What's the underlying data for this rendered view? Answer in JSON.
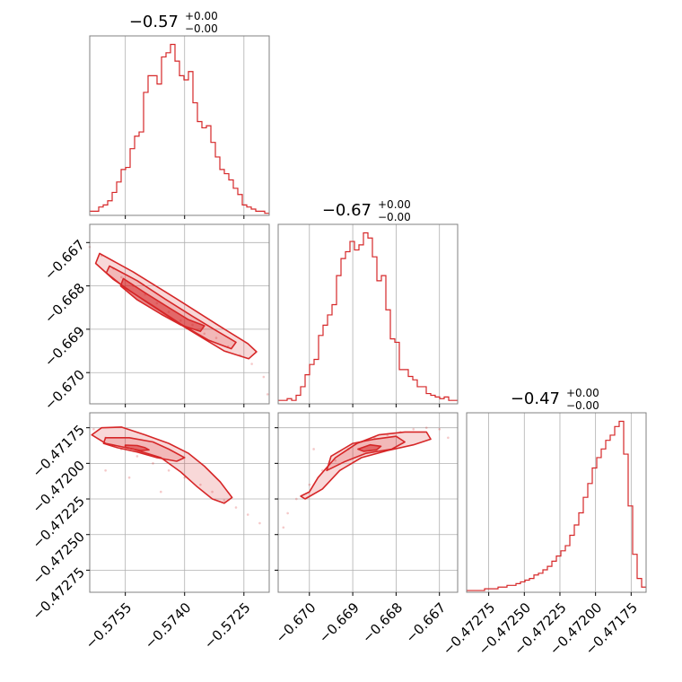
{
  "colors": {
    "accent": "#d62728",
    "grid": "#b0b0b0",
    "frame": "#808080"
  },
  "chart_data": {
    "type": "corner-plot",
    "parameters": [
      {
        "title": {
          "main": "−0.57",
          "sup": "+0.00",
          "sub": "−0.00"
        },
        "range": [
          -0.5764,
          -0.57186
        ],
        "ticks": [
          -0.5755,
          -0.574,
          -0.5725
        ],
        "tick_labels": [
          "−0.5755",
          "−0.5740",
          "−0.5725"
        ],
        "hist_counts": [
          2,
          2,
          4,
          5,
          7,
          11,
          16,
          22,
          23,
          32,
          38,
          40,
          59,
          67,
          67,
          63,
          76,
          78,
          82,
          74,
          67,
          65,
          69,
          54,
          45,
          42,
          43,
          35,
          28,
          22,
          20,
          17,
          13,
          10,
          5,
          4,
          3,
          2,
          2,
          1
        ]
      },
      {
        "title": {
          "main": "−0.67",
          "sup": "+0.00",
          "sub": "−0.00"
        },
        "range": [
          -0.67072,
          -0.66658
        ],
        "ticks": [
          -0.67,
          -0.669,
          -0.668,
          -0.667
        ],
        "tick_labels": [
          "−0.670",
          "−0.669",
          "−0.668",
          "−0.667"
        ],
        "hist_counts": [
          2,
          2,
          3,
          2,
          5,
          10,
          17,
          23,
          26,
          40,
          46,
          52,
          58,
          75,
          85,
          89,
          95,
          90,
          93,
          100,
          97,
          86,
          72,
          75,
          55,
          38,
          36,
          20,
          20,
          16,
          14,
          10,
          10,
          6,
          5,
          4,
          3,
          4,
          2,
          2
        ]
      },
      {
        "title": {
          "main": "−0.47",
          "sup": "+0.00",
          "sub": "−0.00"
        },
        "range": [
          -0.472905,
          -0.471645
        ],
        "ticks": [
          -0.47275,
          -0.4725,
          -0.47225,
          -0.472,
          -0.47175
        ],
        "tick_labels": [
          "−0.47275",
          "−0.47250",
          "−0.47225",
          "−0.47200",
          "−0.47175"
        ],
        "hist_counts": [
          1,
          1,
          1,
          1,
          2,
          2,
          2,
          3,
          3,
          4,
          4,
          5,
          6,
          7,
          8,
          10,
          11,
          13,
          15,
          18,
          21,
          24,
          27,
          33,
          39,
          46,
          55,
          63,
          72,
          78,
          83,
          88,
          91,
          96,
          99,
          80,
          50,
          22,
          8,
          3
        ]
      }
    ],
    "pairs": [
      {
        "x_param": 0,
        "y_param": 1,
        "contours": [
          {
            "level": 1,
            "points": [
              [
                -0.57555,
                -0.66783
              ],
              [
                -0.575,
                -0.66816
              ],
              [
                -0.5744,
                -0.6685
              ],
              [
                -0.5739,
                -0.66878
              ],
              [
                -0.5735,
                -0.66892
              ],
              [
                -0.5736,
                -0.66905
              ],
              [
                -0.5741,
                -0.6689
              ],
              [
                -0.5746,
                -0.66865
              ],
              [
                -0.5752,
                -0.66832
              ],
              [
                -0.57562,
                -0.668
              ]
            ]
          },
          {
            "level": 2,
            "points": [
              [
                -0.5759,
                -0.66754
              ],
              [
                -0.5752,
                -0.66788
              ],
              [
                -0.5745,
                -0.6683
              ],
              [
                -0.5738,
                -0.6687
              ],
              [
                -0.5732,
                -0.66903
              ],
              [
                -0.5727,
                -0.6693
              ],
              [
                -0.57282,
                -0.66945
              ],
              [
                -0.5734,
                -0.66925
              ],
              [
                -0.5741,
                -0.66888
              ],
              [
                -0.5748,
                -0.66846
              ],
              [
                -0.5755,
                -0.66805
              ],
              [
                -0.57598,
                -0.6677
              ]
            ]
          },
          {
            "level": 3,
            "points": [
              [
                -0.57615,
                -0.66725
              ],
              [
                -0.5753,
                -0.66768
              ],
              [
                -0.5742,
                -0.6683
              ],
              [
                -0.5732,
                -0.66888
              ],
              [
                -0.5724,
                -0.66933
              ],
              [
                -0.57218,
                -0.66952
              ],
              [
                -0.57238,
                -0.66968
              ],
              [
                -0.573,
                -0.6695
              ],
              [
                -0.574,
                -0.66895
              ],
              [
                -0.575,
                -0.66835
              ],
              [
                -0.5758,
                -0.66785
              ],
              [
                -0.57625,
                -0.66748
              ]
            ]
          }
        ],
        "samples": [
          [
            -0.5764,
            -0.6671
          ],
          [
            -0.5761,
            -0.6673
          ],
          [
            -0.5758,
            -0.6676
          ],
          [
            -0.5756,
            -0.6678
          ],
          [
            -0.5753,
            -0.668
          ],
          [
            -0.575,
            -0.6682
          ],
          [
            -0.5747,
            -0.6684
          ],
          [
            -0.5744,
            -0.6686
          ],
          [
            -0.5741,
            -0.6688
          ],
          [
            -0.5738,
            -0.6689
          ],
          [
            -0.5735,
            -0.6691
          ],
          [
            -0.5732,
            -0.6692
          ],
          [
            -0.5729,
            -0.6694
          ],
          [
            -0.5726,
            -0.6696
          ],
          [
            -0.5723,
            -0.6698
          ],
          [
            -0.572,
            -0.6701
          ],
          [
            -0.5719,
            -0.6705
          ]
        ]
      },
      {
        "x_param": 0,
        "y_param": 2,
        "contours": [
          {
            "level": 1,
            "points": [
              [
                -0.5755,
                -0.471872
              ],
              [
                -0.5752,
                -0.471875
              ],
              [
                -0.575,
                -0.47189
              ],
              [
                -0.5749,
                -0.471905
              ],
              [
                -0.5751,
                -0.47191
              ],
              [
                -0.5753,
                -0.4719
              ],
              [
                -0.5755,
                -0.471888
              ]
            ]
          },
          {
            "level": 2,
            "points": [
              [
                -0.576,
                -0.47182
              ],
              [
                -0.5754,
                -0.47182
              ],
              [
                -0.5748,
                -0.47185
              ],
              [
                -0.5744,
                -0.4719
              ],
              [
                -0.574,
                -0.47196
              ],
              [
                -0.5742,
                -0.471985
              ],
              [
                -0.5747,
                -0.47196
              ],
              [
                -0.5752,
                -0.47192
              ],
              [
                -0.5757,
                -0.47189
              ],
              [
                -0.57605,
                -0.47186
              ]
            ]
          },
          {
            "level": 3,
            "points": [
              [
                -0.5761,
                -0.47175
              ],
              [
                -0.5756,
                -0.471745
              ],
              [
                -0.575,
                -0.4718
              ],
              [
                -0.5744,
                -0.47186
              ],
              [
                -0.5739,
                -0.47193
              ],
              [
                -0.5735,
                -0.47202
              ],
              [
                -0.5731,
                -0.47213
              ],
              [
                -0.5728,
                -0.47224
              ],
              [
                -0.573,
                -0.47228
              ],
              [
                -0.5733,
                -0.47225
              ],
              [
                -0.5737,
                -0.47216
              ],
              [
                -0.5741,
                -0.47206
              ],
              [
                -0.5746,
                -0.47196
              ],
              [
                -0.5753,
                -0.4719
              ],
              [
                -0.576,
                -0.47186
              ],
              [
                -0.57635,
                -0.4718
              ]
            ]
          }
        ],
        "samples": [
          [
            -0.5763,
            -0.47176
          ],
          [
            -0.576,
            -0.47182
          ],
          [
            -0.5756,
            -0.4719
          ],
          [
            -0.5752,
            -0.47195
          ],
          [
            -0.5748,
            -0.472
          ],
          [
            -0.5744,
            -0.47205
          ],
          [
            -0.574,
            -0.4721
          ],
          [
            -0.5736,
            -0.47215
          ],
          [
            -0.5733,
            -0.4722
          ],
          [
            -0.573,
            -0.47226
          ],
          [
            -0.5727,
            -0.47231
          ],
          [
            -0.5724,
            -0.47236
          ],
          [
            -0.5721,
            -0.47242
          ],
          [
            -0.576,
            -0.47205
          ],
          [
            -0.5754,
            -0.4721
          ],
          [
            -0.5746,
            -0.4722
          ]
        ]
      },
      {
        "x_param": 1,
        "y_param": 2,
        "contours": [
          {
            "level": 1,
            "points": [
              [
                -0.66888,
                -0.4719
              ],
              [
                -0.6686,
                -0.47187
              ],
              [
                -0.66835,
                -0.47188
              ],
              [
                -0.66845,
                -0.471905
              ],
              [
                -0.66875,
                -0.471915
              ]
            ]
          },
          {
            "level": 2,
            "points": [
              [
                -0.6695,
                -0.47195
              ],
              [
                -0.669,
                -0.47186
              ],
              [
                -0.6685,
                -0.47183
              ],
              [
                -0.668,
                -0.47181
              ],
              [
                -0.6678,
                -0.47185
              ],
              [
                -0.6681,
                -0.4719
              ],
              [
                -0.6687,
                -0.47193
              ],
              [
                -0.6692,
                -0.47199
              ],
              [
                -0.6696,
                -0.47205
              ]
            ]
          },
          {
            "level": 3,
            "points": [
              [
                -0.67,
                -0.4722
              ],
              [
                -0.6698,
                -0.4721
              ],
              [
                -0.6694,
                -0.47196
              ],
              [
                -0.6689,
                -0.47186
              ],
              [
                -0.6684,
                -0.4718
              ],
              [
                -0.6678,
                -0.47178
              ],
              [
                -0.6673,
                -0.47178
              ],
              [
                -0.6672,
                -0.47183
              ],
              [
                -0.6676,
                -0.47187
              ],
              [
                -0.6682,
                -0.47191
              ],
              [
                -0.6688,
                -0.47196
              ],
              [
                -0.6693,
                -0.47205
              ],
              [
                -0.6697,
                -0.47218
              ],
              [
                -0.6701,
                -0.47225
              ],
              [
                -0.6702,
                -0.47223
              ]
            ]
          }
        ],
        "samples": [
          [
            -0.6705,
            -0.47235
          ],
          [
            -0.6703,
            -0.47225
          ],
          [
            -0.67,
            -0.47215
          ],
          [
            -0.6697,
            -0.47205
          ],
          [
            -0.6694,
            -0.47198
          ],
          [
            -0.6691,
            -0.4719
          ],
          [
            -0.6688,
            -0.47185
          ],
          [
            -0.6685,
            -0.47182
          ],
          [
            -0.6682,
            -0.4718
          ],
          [
            -0.6679,
            -0.47178
          ],
          [
            -0.6676,
            -0.47176
          ],
          [
            -0.6673,
            -0.47175
          ],
          [
            -0.667,
            -0.47176
          ],
          [
            -0.6706,
            -0.47245
          ],
          [
            -0.6668,
            -0.47182
          ],
          [
            -0.6699,
            -0.4719
          ]
        ]
      }
    ]
  }
}
